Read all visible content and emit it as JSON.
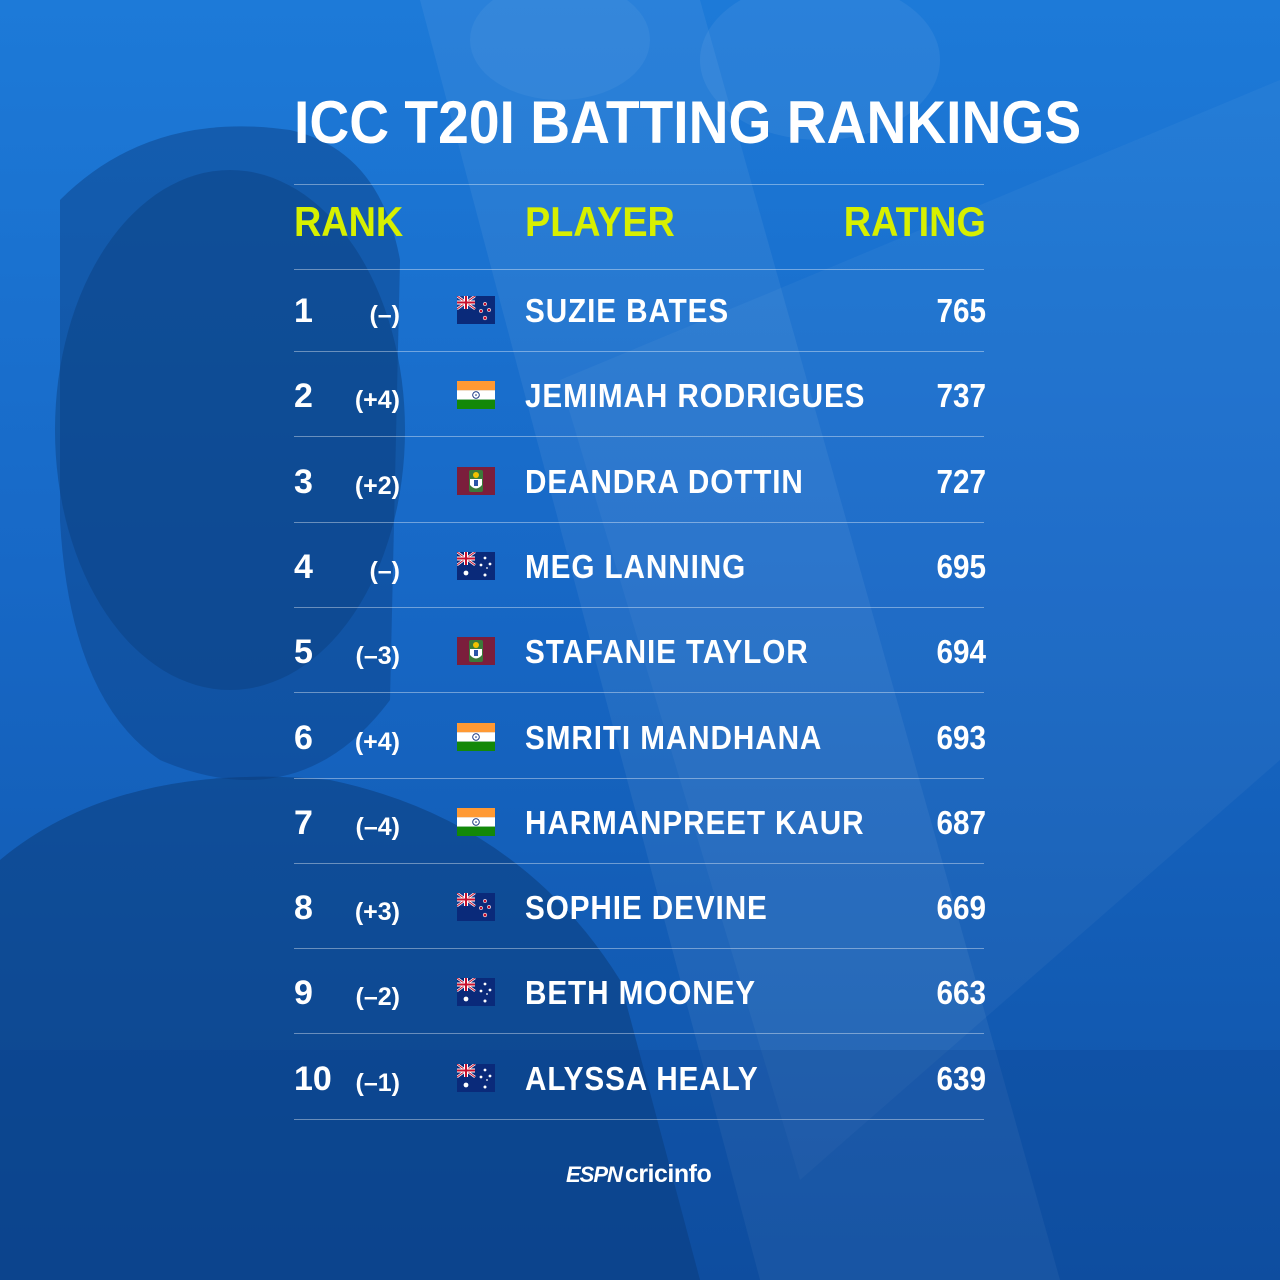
{
  "title": "ICC T20I BATTING RANKINGS",
  "headers": {
    "rank": "RANK",
    "player": "PLAYER",
    "rating": "RATING"
  },
  "accent_color": "#d7f000",
  "rows": [
    {
      "rank": "1",
      "change": "(–)",
      "flag": "new-zealand-flag-icon",
      "name": "SUZIE BATES",
      "rating": "765"
    },
    {
      "rank": "2",
      "change": "(+4)",
      "flag": "india-flag-icon",
      "name": "JEMIMAH RODRIGUES",
      "rating": "737"
    },
    {
      "rank": "3",
      "change": "(+2)",
      "flag": "west-indies-flag-icon",
      "name": "DEANDRA DOTTIN",
      "rating": "727"
    },
    {
      "rank": "4",
      "change": "(–)",
      "flag": "australia-flag-icon",
      "name": "MEG LANNING",
      "rating": "695"
    },
    {
      "rank": "5",
      "change": "(–3)",
      "flag": "west-indies-flag-icon",
      "name": "STAFANIE TAYLOR",
      "rating": "694"
    },
    {
      "rank": "6",
      "change": "(+4)",
      "flag": "india-flag-icon",
      "name": "SMRITI MANDHANA",
      "rating": "693"
    },
    {
      "rank": "7",
      "change": "(–4)",
      "flag": "india-flag-icon",
      "name": "HARMANPREET KAUR",
      "rating": "687"
    },
    {
      "rank": "8",
      "change": "(+3)",
      "flag": "new-zealand-flag-icon",
      "name": "SOPHIE DEVINE",
      "rating": "669"
    },
    {
      "rank": "9",
      "change": "(–2)",
      "flag": "australia-flag-icon",
      "name": "BETH MOONEY",
      "rating": "663"
    },
    {
      "rank": "10",
      "change": "(–1)",
      "flag": "australia-flag-icon",
      "name": "ALYSSA HEALY",
      "rating": "639"
    }
  ],
  "brand": {
    "part1": "ESPN",
    "part2": "cricinfo"
  }
}
